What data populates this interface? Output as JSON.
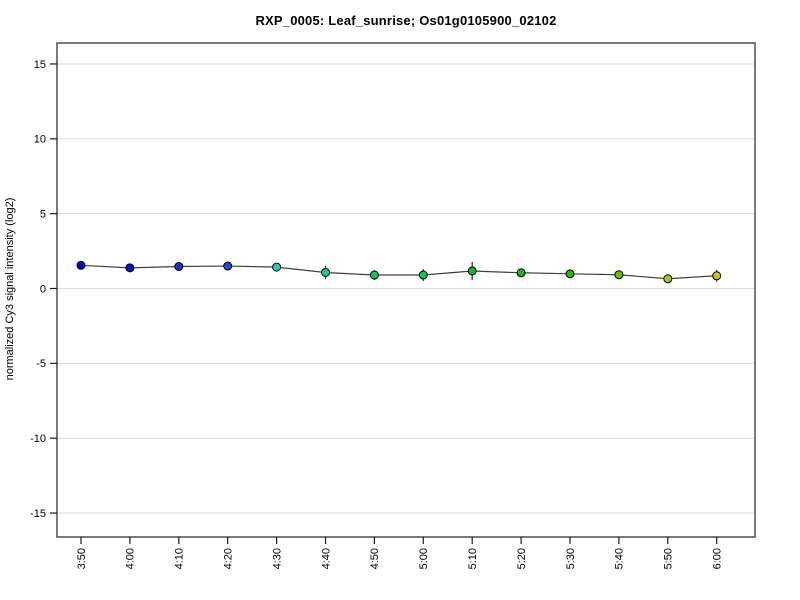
{
  "header": {
    "title": "RXP_0005: Leaf_sunrise; Os01g0105900_02102"
  },
  "chart_data": {
    "type": "line",
    "title": "RXP_0005: Leaf_sunrise; Os01g0105900_02102",
    "xlabel": "",
    "ylabel": "normalized Cy3 signal intensity (log2)",
    "categories": [
      "3:50",
      "4:00",
      "4:10",
      "4:20",
      "4:30",
      "4:40",
      "4:50",
      "5:00",
      "5:10",
      "5:20",
      "5:30",
      "5:40",
      "5:50",
      "6:00"
    ],
    "values": [
      1.55,
      1.38,
      1.47,
      1.5,
      1.43,
      1.07,
      0.9,
      0.9,
      1.17,
      1.05,
      0.98,
      0.92,
      0.65,
      0.85
    ],
    "errors": [
      0.1,
      0.1,
      0.25,
      0.25,
      0.2,
      0.45,
      0.33,
      0.4,
      0.6,
      0.25,
      0.2,
      0.2,
      0.15,
      0.4
    ],
    "point_colors": [
      "#0000B4",
      "#0A14C8",
      "#1436D2",
      "#1E4CD7",
      "#28C8C8",
      "#14C8A0",
      "#0AC864",
      "#0AC850",
      "#14B432",
      "#1EB41E",
      "#32B414",
      "#5AC30A",
      "#A0C814",
      "#C8C800"
    ],
    "y_ticks": [
      -15,
      -10,
      -5,
      0,
      5,
      10,
      15
    ],
    "ylim": [
      -16.6,
      16.4
    ],
    "grid": true,
    "legend": "none",
    "line_color": "#404040",
    "error_bar_color": "#3a3a3a",
    "point_outline_color": "#000000",
    "grid_color": "#dcdcdc",
    "border_color": "#4d4d4d",
    "tick_color": "#1a1a1a",
    "label_color": "#000000"
  }
}
